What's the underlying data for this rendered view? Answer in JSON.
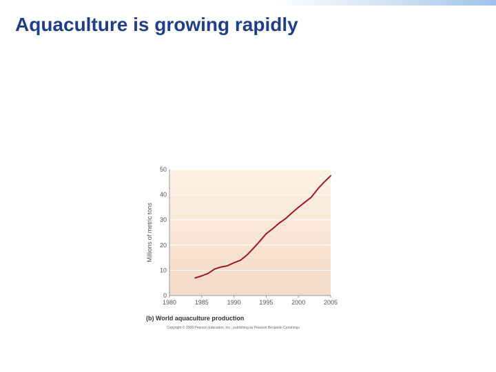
{
  "slide": {
    "title": "Aquaculture is growing rapidly",
    "caption": "(b) World aquaculture production",
    "copyright": "Copyright © 2008 Pearson Education, Inc., publishing as Pearson Benjamin Cummings"
  },
  "colors": {
    "title": "#1f3f86",
    "line": "#a3141e",
    "plot_bg_top": "#fdf3e4",
    "plot_bg_bottom": "#f4d9c8"
  },
  "chart_data": {
    "type": "line",
    "title": "",
    "xlabel": "",
    "ylabel": "Millions of metric tons",
    "xlim": [
      1980,
      2005
    ],
    "ylim": [
      0,
      50
    ],
    "x_ticks": [
      1980,
      1985,
      1990,
      1995,
      2000,
      2005
    ],
    "y_ticks": [
      0,
      10,
      20,
      30,
      40,
      50
    ],
    "grid": "horizontal",
    "series": [
      {
        "x": [
          1984,
          1985,
          1986,
          1987,
          1988,
          1989,
          1990,
          1991,
          1992,
          1993,
          1994,
          1995,
          1996,
          1997,
          1998,
          1999,
          2000,
          2001,
          2002,
          2003,
          2004,
          2005
        ],
        "values": [
          7.0,
          7.8,
          8.8,
          10.5,
          11.3,
          11.8,
          13.0,
          14.0,
          16.0,
          18.7,
          21.5,
          24.5,
          26.5,
          28.7,
          30.5,
          32.8,
          35.0,
          37.0,
          39.0,
          42.3,
          45.0,
          47.5
        ]
      }
    ]
  }
}
